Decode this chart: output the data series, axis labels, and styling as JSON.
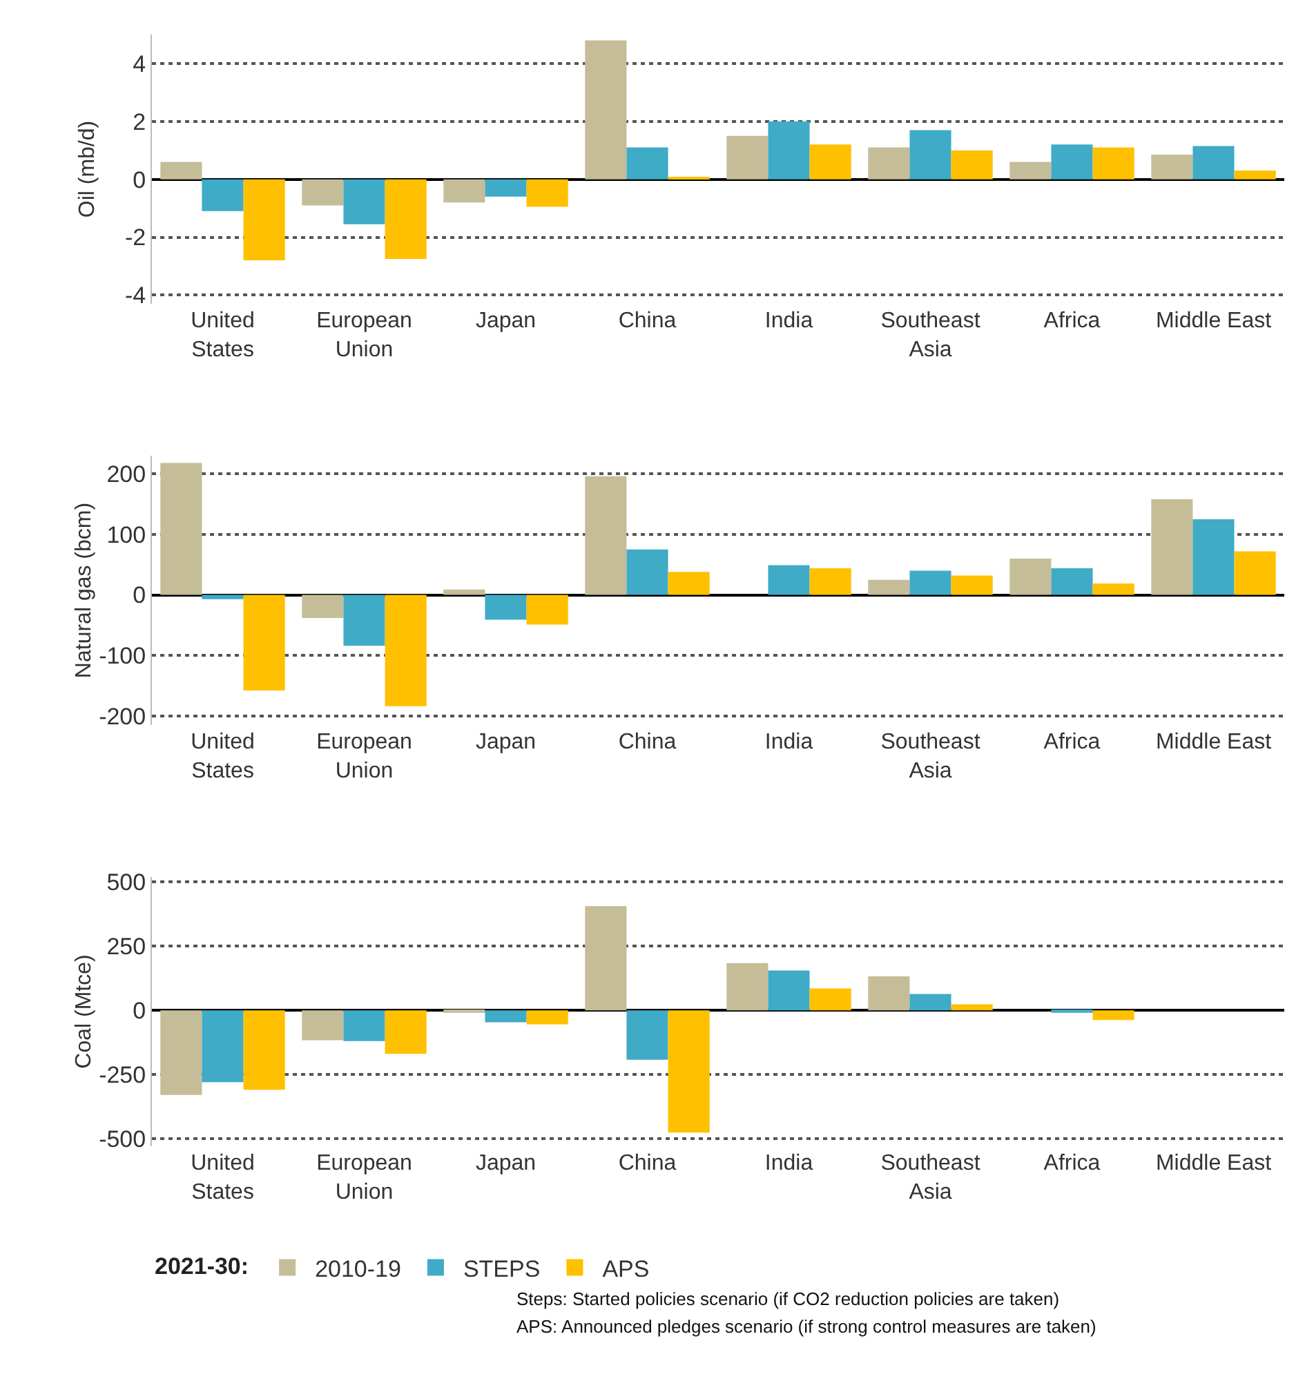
{
  "chart_data": [
    {
      "type": "bar",
      "ylabel": "Oil (mb/d)",
      "categories": [
        "United States",
        "European Union",
        "Japan",
        "China",
        "India",
        "Southeast Asia",
        "Africa",
        "Middle East"
      ],
      "series": [
        {
          "color": "#c4bd97",
          "values": [
            0.6,
            -0.9,
            -0.8,
            4.8,
            1.5,
            1.1,
            0.6,
            0.85
          ]
        },
        {
          "color": "#3fabc6",
          "values": [
            -1.1,
            -1.55,
            -0.6,
            1.1,
            2.0,
            1.7,
            1.2,
            1.15
          ]
        },
        {
          "color": "#ffc000",
          "values": [
            -2.8,
            -2.75,
            -0.95,
            0.05,
            1.2,
            1.0,
            1.1,
            0.3
          ]
        }
      ],
      "ylim": [
        -4.3,
        5
      ],
      "yticks": [
        -4,
        -2,
        0,
        2,
        4
      ],
      "grid": "y",
      "legend": false
    },
    {
      "type": "bar",
      "ylabel": "Natural gas (bcm)",
      "categories": [
        "United States",
        "European Union",
        "Japan",
        "China",
        "India",
        "Southeast Asia",
        "Africa",
        "Middle East"
      ],
      "series": [
        {
          "color": "#c4bd97",
          "values": [
            218,
            -38,
            9,
            196,
            0,
            25,
            60,
            158
          ]
        },
        {
          "color": "#3fabc6",
          "values": [
            -7,
            -84,
            -41,
            75,
            49,
            40,
            44,
            125
          ]
        },
        {
          "color": "#ffc000",
          "values": [
            -158,
            -184,
            -49,
            38,
            44,
            32,
            19,
            72
          ]
        }
      ],
      "ylim": [
        -215,
        230
      ],
      "yticks": [
        -200,
        -100,
        0,
        100,
        200
      ],
      "grid": "y",
      "legend": false
    },
    {
      "type": "bar",
      "ylabel": "Coal (Mtce)",
      "categories": [
        "United States",
        "European Union",
        "Japan",
        "China",
        "India",
        "Southeast Asia",
        "Africa",
        "Middle East"
      ],
      "series": [
        {
          "name": "2010-19",
          "color": "#c4bd97",
          "values": [
            -330,
            -117,
            -10,
            406,
            184,
            132,
            0,
            0
          ]
        },
        {
          "name": "STEPS",
          "color": "#3fabc6",
          "values": [
            -280,
            -120,
            -47,
            -193,
            155,
            64,
            -10,
            0
          ]
        },
        {
          "name": "APS",
          "color": "#ffc000",
          "values": [
            -310,
            -170,
            -55,
            -477,
            85,
            23,
            -38,
            0
          ]
        }
      ],
      "ylim": [
        -530,
        520
      ],
      "yticks": [
        -500,
        -250,
        0,
        250,
        500
      ],
      "grid": "y",
      "legend": "bottom left",
      "legend_title": "2021-30:",
      "annotations": [
        "Steps: Started policies scenario (if CO2 reduction policies are taken)",
        "APS: Announced pledges scenario (if strong control measures are taken)"
      ]
    }
  ]
}
